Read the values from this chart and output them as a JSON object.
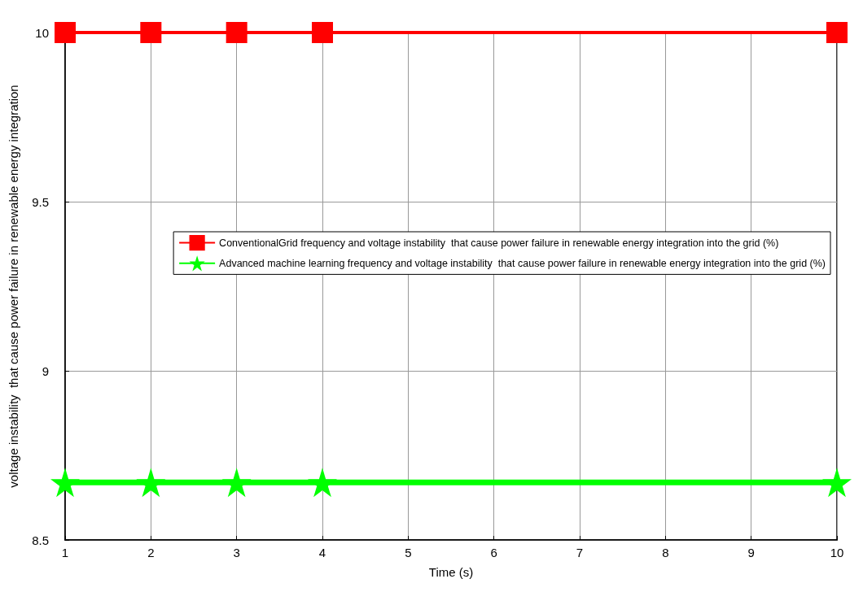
{
  "chart_data": {
    "type": "line",
    "xlabel": "Time (s)",
    "ylabel": "voltage instability  that cause power failure in renewable energy integration",
    "x": [
      1,
      2,
      3,
      4,
      10
    ],
    "series": [
      {
        "name": "ConventionalGrid frequency and voltage instability  that cause power failure in renewable energy integration into the grid (%)",
        "color": "#ff0000",
        "values": [
          10,
          10,
          10,
          10,
          10
        ],
        "marker": "square"
      },
      {
        "name": "Advanced machine learning frequency and voltage instability  that cause power failure in renewable energy integration into the grid (%)",
        "color": "#00ff00",
        "values": [
          8.67,
          8.67,
          8.67,
          8.67,
          8.67
        ],
        "marker": "star"
      }
    ],
    "xlim": [
      1,
      10
    ],
    "xticks": [
      1,
      2,
      3,
      4,
      5,
      6,
      7,
      8,
      9,
      10
    ],
    "ylim": [
      8.5,
      10
    ],
    "yticks": [
      8.5,
      9,
      9.5,
      10
    ],
    "grid": true,
    "legend": "right",
    "line_style": "solid"
  }
}
